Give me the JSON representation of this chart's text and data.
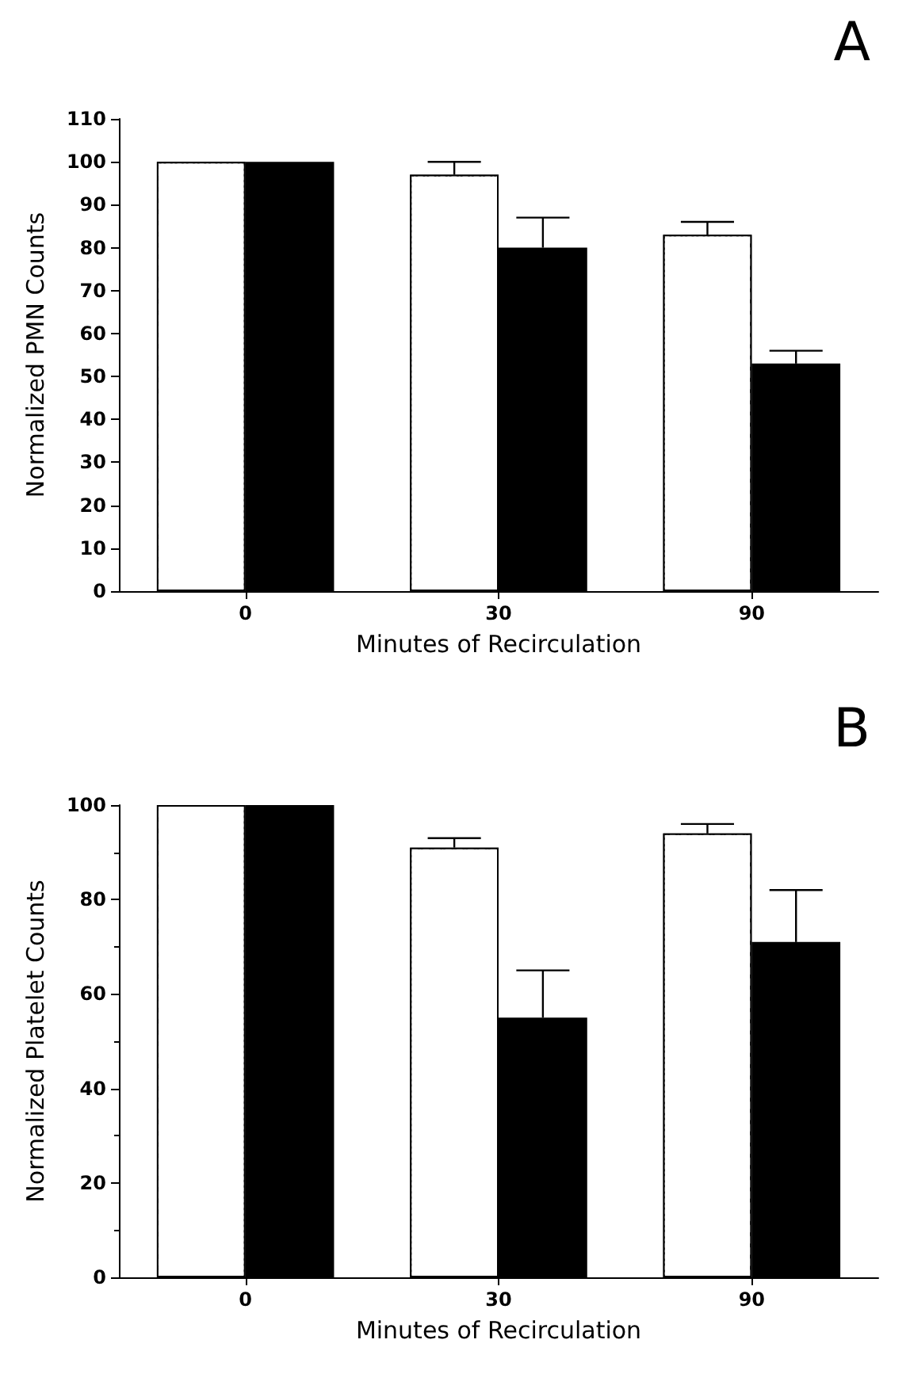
{
  "chart_data": [
    {
      "type": "bar",
      "title": "A",
      "xlabel": "Minutes of Recirculation",
      "ylabel": "Normalized PMN Counts",
      "categories": [
        "0",
        "30",
        "90"
      ],
      "ylim": [
        0,
        110
      ],
      "yticks": [
        0,
        10,
        20,
        30,
        40,
        50,
        60,
        70,
        80,
        90,
        100,
        110
      ],
      "grid": false,
      "series": [
        {
          "color": "#ffffff",
          "values": [
            100,
            97,
            83
          ],
          "errors": [
            null,
            [
              97,
              100
            ],
            [
              83,
              86
            ]
          ]
        },
        {
          "color": "#000000",
          "values": [
            100,
            80,
            53
          ],
          "errors": [
            null,
            [
              80,
              87
            ],
            [
              53,
              56
            ]
          ]
        }
      ]
    },
    {
      "type": "bar",
      "title": "B",
      "xlabel": "Minutes of Recirculation",
      "ylabel": "Normalized Platelet Counts",
      "categories": [
        "0",
        "30",
        "90"
      ],
      "ylim": [
        0,
        100
      ],
      "yticks": [
        0,
        20,
        40,
        60,
        80,
        100
      ],
      "grid": false,
      "series": [
        {
          "color": "#ffffff",
          "values": [
            100,
            91,
            94
          ],
          "errors": [
            null,
            [
              91,
              93
            ],
            [
              94,
              96
            ]
          ]
        },
        {
          "color": "#000000",
          "values": [
            100,
            55,
            71
          ],
          "errors": [
            null,
            [
              55,
              65
            ],
            [
              71,
              82
            ]
          ]
        }
      ]
    }
  ]
}
